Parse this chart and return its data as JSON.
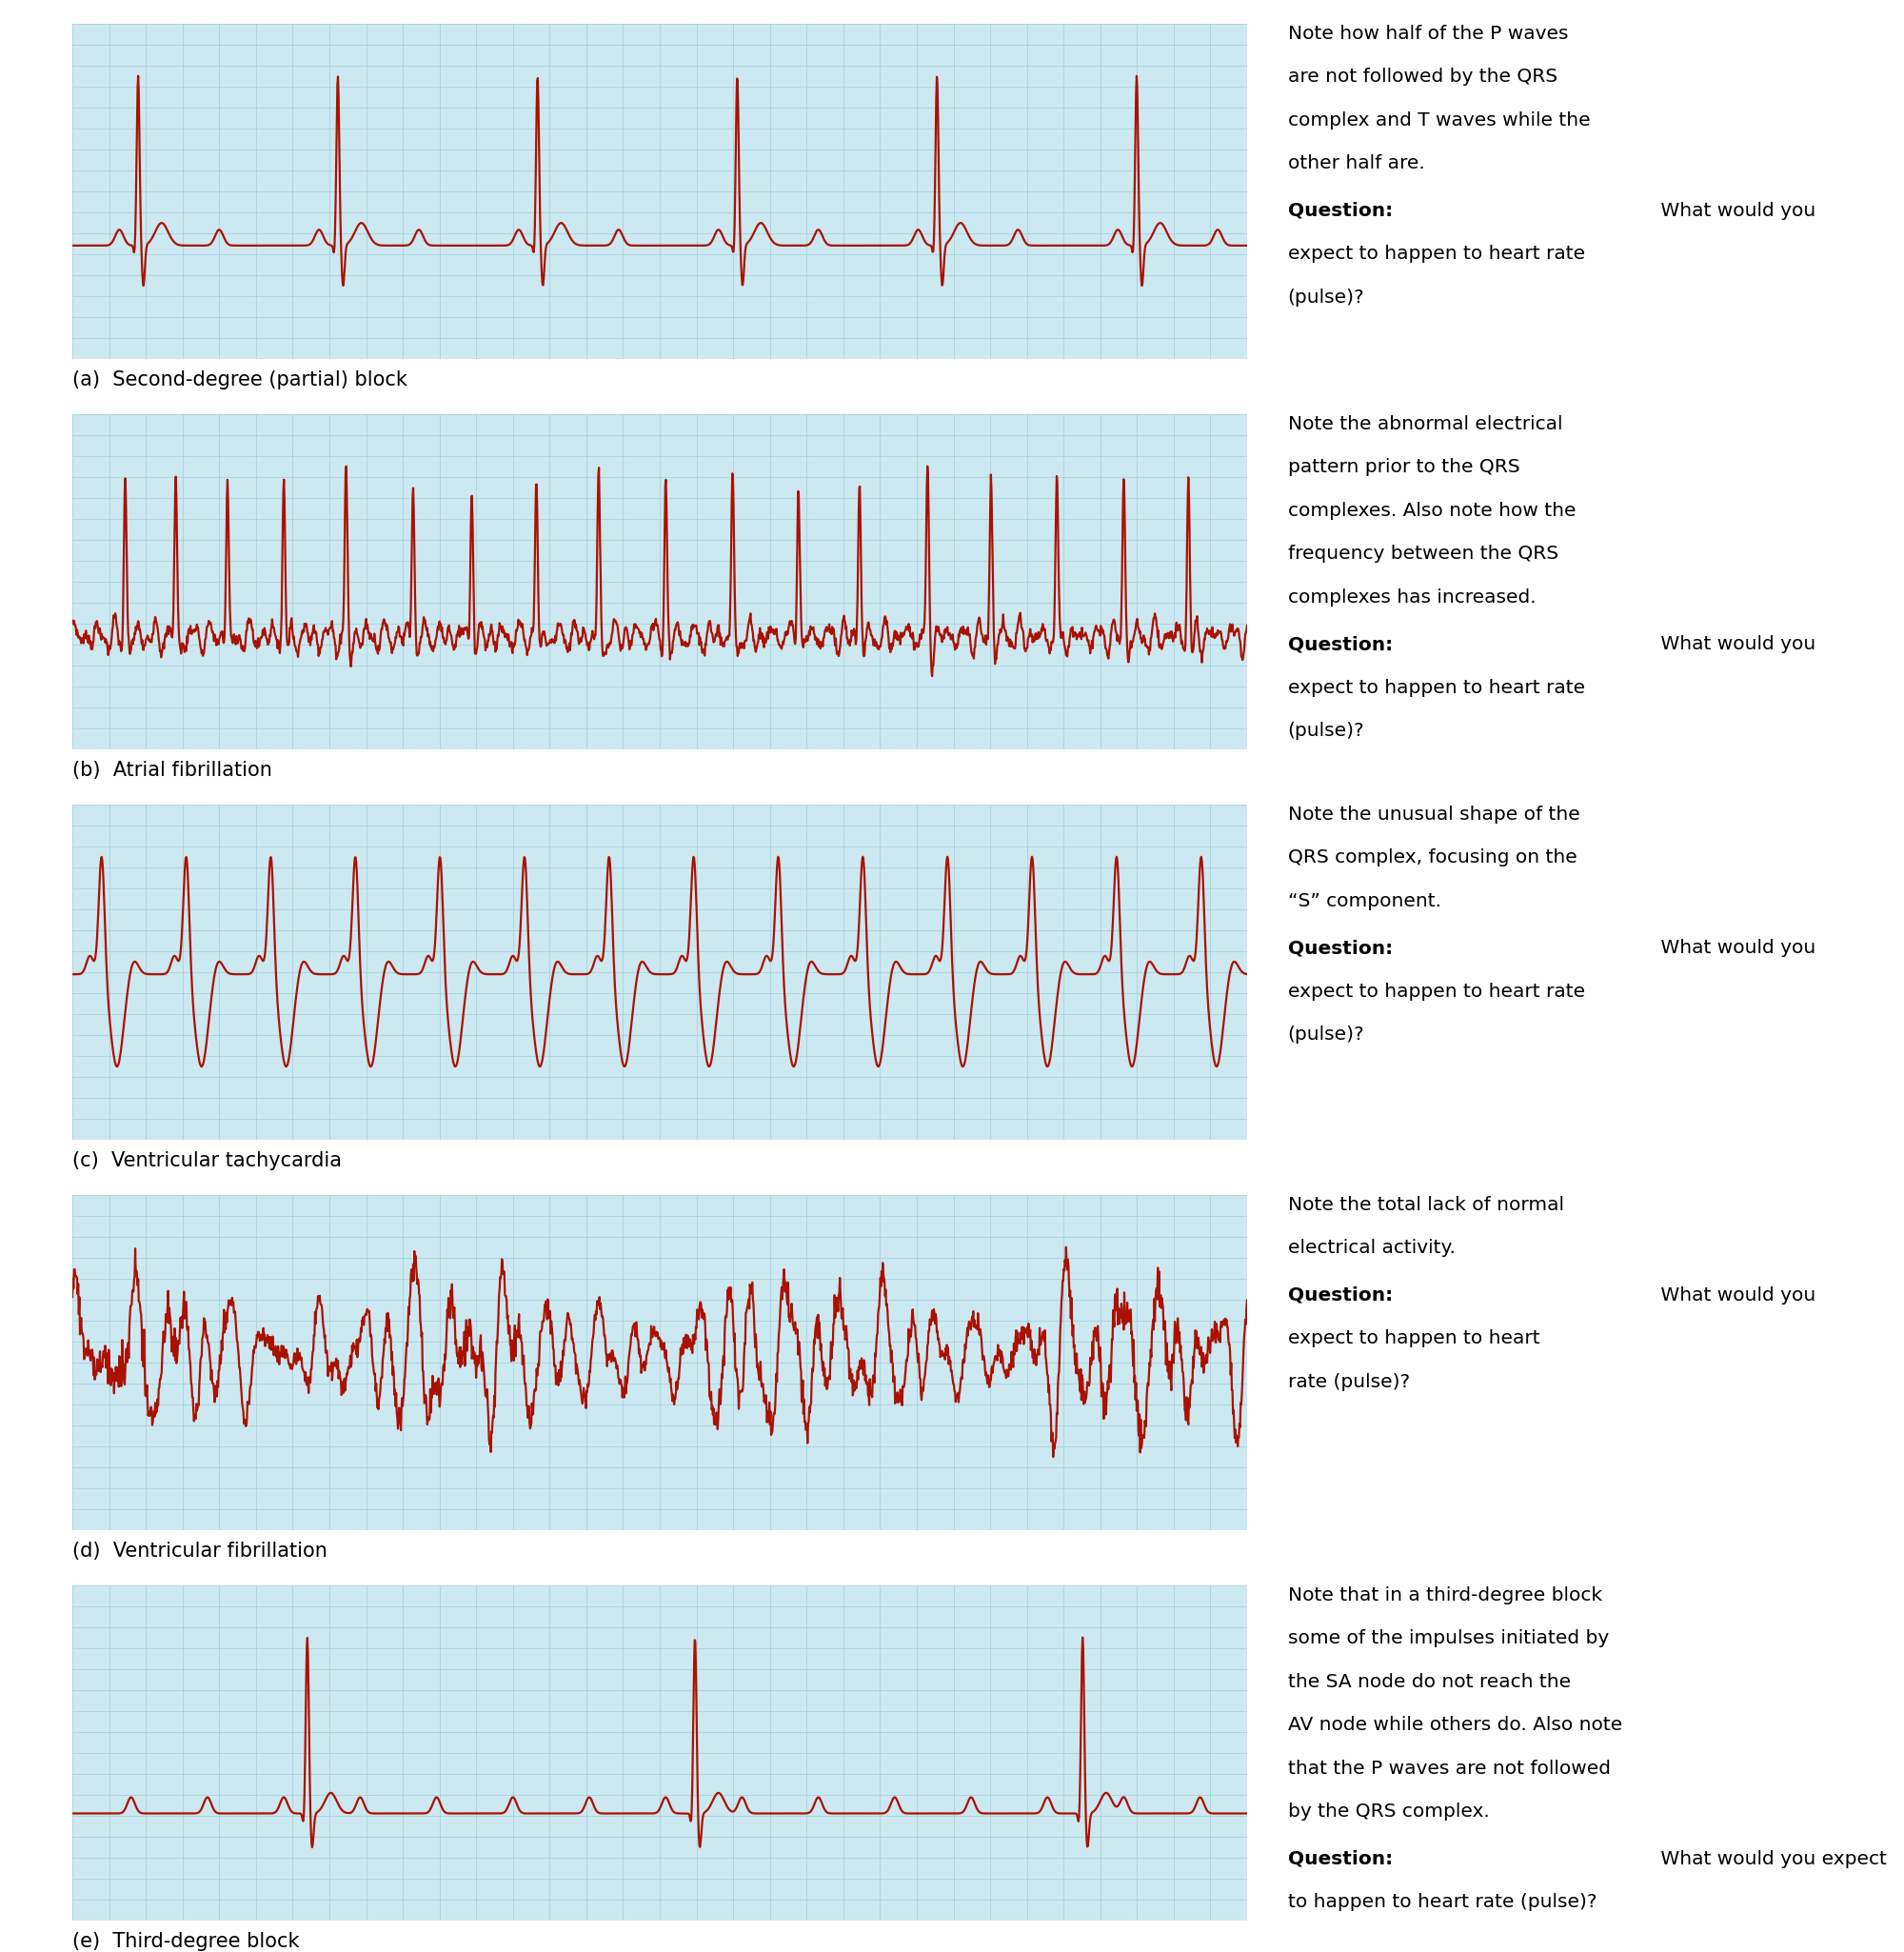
{
  "panels": [
    {
      "label": "(a)",
      "title": "Second-degree (partial) block",
      "note_plain": "Note how half of the P waves\nare not followed by the QRS\ncomplex and T waves while the\nother half are.",
      "question_bold": "Question:",
      "question_rest": " What would you\nexpect to happen to heart rate\n(pulse)?",
      "ecg_type": "second_degree_block"
    },
    {
      "label": "(b)",
      "title": "Atrial fibrillation",
      "note_plain": "Note the abnormal electrical\npattern prior to the QRS\ncomplexes. Also note how the\nfrequency between the QRS\ncomplexes has increased.",
      "question_bold": "Question:",
      "question_rest": " What would you\nexpect to happen to heart rate\n(pulse)?",
      "ecg_type": "atrial_fibrillation"
    },
    {
      "label": "(c)",
      "title": "Ventricular tachycardia",
      "note_plain": "Note the unusual shape of the\nQRS complex, focusing on the\n“S” component.",
      "question_bold": "Question:",
      "question_rest": " What would you\nexpect to happen to heart rate\n(pulse)?",
      "ecg_type": "ventricular_tachycardia"
    },
    {
      "label": "(d)",
      "title": "Ventricular fibrillation",
      "note_plain": "Note the total lack of normal\nelectrical activity.",
      "question_bold": "Question:",
      "question_rest": " What would you\nexpect to happen to heart\nrate (pulse)?",
      "ecg_type": "ventricular_fibrillation"
    },
    {
      "label": "(e)",
      "title": "Third-degree block",
      "note_plain": "Note that in a third-degree block\nsome of the impulses initiated by\nthe SA node do not reach the\nAV node while others do. Also note\nthat the P waves are not followed\nby the QRS complex.",
      "question_bold": "Question:",
      "question_rest": " What would you expect\nto happen to heart rate (pulse)?",
      "ecg_type": "third_degree_block"
    }
  ],
  "ecg_color": "#AA1100",
  "grid_bg": "#cce8f0",
  "grid_line_major": "#99ccd9",
  "grid_line_minor": "#b8dce8",
  "text_color": "#000000",
  "fig_bg": "#ffffff",
  "ecg_linewidth": 1.6,
  "font_size_note": 14.5,
  "font_size_label": 15
}
